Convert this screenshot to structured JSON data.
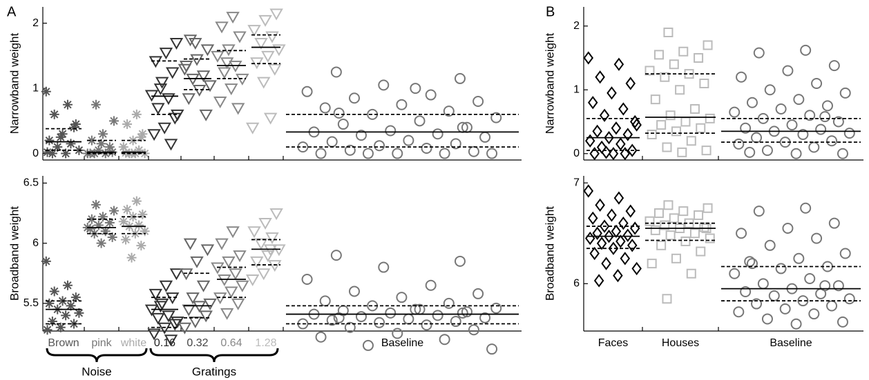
{
  "chart_data": [
    {
      "type": "strip",
      "panel_label": "A",
      "ylabel": "Narrowband weight",
      "ylim": [
        -0.1,
        2.25
      ],
      "yticks": [
        0,
        1,
        2
      ],
      "markers": [
        "asterisk",
        "asterisk",
        "asterisk",
        "triangle",
        "triangle",
        "triangle",
        "triangle",
        "circle"
      ],
      "colors": [
        "#555555",
        "#777777",
        "#aaaaaa",
        "#333333",
        "#666666",
        "#888888",
        "#bbbbbb",
        "#777777"
      ],
      "medians": [
        0.18,
        0.02,
        0.02,
        0.88,
        1.15,
        1.35,
        1.63,
        0.33
      ],
      "q1": [
        0.05,
        0,
        0,
        0.6,
        0.98,
        1.15,
        1.38,
        0.1
      ],
      "q3": [
        0.38,
        0.2,
        0.2,
        1.42,
        1.45,
        1.58,
        1.82,
        0.6
      ],
      "values": [
        [
          0.95,
          0.75,
          0.6,
          0.45,
          0.3,
          0.2,
          0.15,
          0.1,
          0.05,
          0,
          0,
          0.4,
          0.25,
          0.02
        ],
        [
          0.75,
          0.5,
          0.3,
          0.2,
          0.1,
          0.05,
          0,
          0,
          0,
          0.02,
          0.15,
          0
        ],
        [
          0.6,
          0.45,
          0.3,
          0.2,
          0.1,
          0.05,
          0,
          0,
          0,
          0.01,
          0.25,
          0
        ],
        [
          1.7,
          1.55,
          1.42,
          1.25,
          1.1,
          0.9,
          0.85,
          0.7,
          0.55,
          0.4,
          0.3,
          0.15,
          1.0,
          0.6
        ],
        [
          1.75,
          1.6,
          1.45,
          1.35,
          1.2,
          1.15,
          1.05,
          0.98,
          0.85,
          0.6,
          1.7,
          1.3
        ],
        [
          2.1,
          1.95,
          1.8,
          1.6,
          1.5,
          1.35,
          1.25,
          1.15,
          1.0,
          0.8,
          0.7,
          1.4
        ],
        [
          2.15,
          2.05,
          1.9,
          1.8,
          1.7,
          1.6,
          1.5,
          1.4,
          1.3,
          1.1,
          0.4,
          0.55
        ],
        [
          1.25,
          1.15,
          1.05,
          0.95,
          0.9,
          0.85,
          0.8,
          0.75,
          0.7,
          0.65,
          0.6,
          0.55,
          0.5,
          0.45,
          0.4,
          0.35,
          0.33,
          0.3,
          0.28,
          0.25,
          0.2,
          0.18,
          0.15,
          0.12,
          0.1,
          0.08,
          0.05,
          0.03,
          0,
          0,
          0,
          0,
          0,
          1.0,
          0.62,
          0.4
        ]
      ]
    },
    {
      "type": "strip",
      "ylabel": "Broadband weight",
      "ylim": [
        5.27,
        6.56
      ],
      "yticks": [
        5.5,
        6,
        6.5
      ],
      "categories": [
        "Brown",
        "pink",
        "white",
        "0.16",
        "0.32",
        "0.64",
        "1.28",
        "Baseline"
      ],
      "category_colors": [
        "#555555",
        "#777777",
        "#aaaaaa",
        "#222222",
        "#444444",
        "#888888",
        "#bbbbbb",
        "#000000"
      ],
      "annotations": [
        "Noise",
        "Gratings"
      ],
      "markers": [
        "asterisk",
        "asterisk",
        "asterisk",
        "triangle",
        "triangle",
        "triangle",
        "triangle",
        "circle"
      ],
      "colors": [
        "#555555",
        "#777777",
        "#aaaaaa",
        "#333333",
        "#666666",
        "#888888",
        "#bbbbbb",
        "#777777"
      ],
      "medians": [
        5.45,
        6.13,
        6.14,
        5.45,
        5.48,
        5.7,
        5.95,
        5.41
      ],
      "q1": [
        5.33,
        6.08,
        6.08,
        5.3,
        5.38,
        5.55,
        5.82,
        5.33
      ],
      "q3": [
        5.52,
        6.2,
        6.22,
        5.55,
        5.75,
        5.8,
        6.03,
        5.48
      ],
      "values": [
        [
          5.85,
          5.65,
          5.6,
          5.55,
          5.52,
          5.5,
          5.48,
          5.45,
          5.42,
          5.4,
          5.35,
          5.33,
          5.3,
          5.28
        ],
        [
          6.32,
          6.27,
          6.22,
          6.2,
          6.17,
          6.15,
          6.13,
          6.1,
          6.08,
          6.05,
          6.0,
          6.12
        ],
        [
          6.35,
          6.28,
          6.24,
          6.22,
          6.18,
          6.15,
          6.14,
          6.1,
          6.08,
          6.03,
          5.98,
          5.88
        ],
        [
          5.75,
          5.65,
          5.58,
          5.55,
          5.5,
          5.45,
          5.4,
          5.38,
          5.33,
          5.3,
          5.25,
          5.2,
          5.48,
          5.35
        ],
        [
          6.0,
          5.95,
          5.85,
          5.75,
          5.65,
          5.55,
          5.5,
          5.48,
          5.45,
          5.4,
          5.35,
          5.3
        ],
        [
          6.1,
          6.0,
          5.9,
          5.85,
          5.8,
          5.75,
          5.7,
          5.65,
          5.6,
          5.55,
          5.5,
          5.42
        ],
        [
          6.25,
          6.17,
          6.1,
          6.05,
          6.0,
          5.95,
          5.9,
          5.85,
          5.82,
          5.75,
          5.7,
          5.95
        ],
        [
          5.9,
          5.85,
          5.8,
          5.7,
          5.65,
          5.6,
          5.58,
          5.55,
          5.52,
          5.5,
          5.48,
          5.46,
          5.45,
          5.44,
          5.43,
          5.42,
          5.41,
          5.4,
          5.39,
          5.38,
          5.37,
          5.36,
          5.35,
          5.34,
          5.33,
          5.32,
          5.3,
          5.28,
          5.25,
          5.22,
          5.2,
          5.15,
          5.12,
          5.45,
          5.38,
          5.42
        ]
      ]
    },
    {
      "type": "strip",
      "panel_label": "B",
      "ylabel": "Narrowband weight",
      "ylim": [
        -0.1,
        2.3
      ],
      "yticks": [
        0,
        1,
        2
      ],
      "markers": [
        "diamond",
        "square",
        "circle"
      ],
      "colors": [
        "#000000",
        "#bbbbbb",
        "#777777"
      ],
      "medians": [
        0.25,
        0.57,
        0.35
      ],
      "q1": [
        0.05,
        0.32,
        0.18
      ],
      "q3": [
        0.55,
        1.25,
        0.55
      ],
      "values": [
        [
          1.5,
          1.4,
          1.2,
          1.1,
          0.95,
          0.8,
          0.7,
          0.6,
          0.5,
          0.4,
          0.35,
          0.3,
          0.25,
          0.2,
          0.15,
          0.1,
          0.05,
          0,
          0,
          0,
          0.02,
          0.45
        ],
        [
          1.9,
          1.7,
          1.6,
          1.55,
          1.5,
          1.4,
          1.3,
          1.25,
          1.2,
          1.1,
          1.0,
          0.85,
          0.7,
          0.6,
          0.55,
          0.5,
          0.45,
          0.4,
          0.35,
          0.3,
          0.2,
          0.1,
          0.05,
          0.02
        ],
        [
          1.62,
          1.58,
          1.38,
          1.3,
          1.2,
          1.1,
          1.0,
          0.95,
          0.85,
          0.8,
          0.75,
          0.7,
          0.65,
          0.6,
          0.55,
          0.5,
          0.45,
          0.4,
          0.38,
          0.35,
          0.32,
          0.3,
          0.25,
          0.2,
          0.18,
          0.15,
          0.1,
          0.05,
          0,
          0,
          0.02,
          0.58
        ]
      ]
    },
    {
      "type": "strip",
      "ylabel": "Broadband weight",
      "ylim": [
        5.53,
        7.07
      ],
      "yticks": [
        6,
        7
      ],
      "categories": [
        "Faces",
        "Houses",
        "Baseline"
      ],
      "category_colors": [
        "#000000",
        "#000000",
        "#000000"
      ],
      "markers": [
        "diamond",
        "square",
        "circle"
      ],
      "colors": [
        "#000000",
        "#bbbbbb",
        "#777777"
      ],
      "medians": [
        6.47,
        6.55,
        5.95
      ],
      "q1": [
        6.35,
        6.43,
        5.83
      ],
      "q3": [
        6.57,
        6.6,
        6.17
      ],
      "values": [
        [
          6.92,
          6.85,
          6.78,
          6.72,
          6.68,
          6.65,
          6.6,
          6.57,
          6.55,
          6.52,
          6.5,
          6.48,
          6.47,
          6.45,
          6.42,
          6.4,
          6.38,
          6.35,
          6.3,
          6.25,
          6.2,
          6.15,
          6.08,
          6.03
        ],
        [
          6.78,
          6.75,
          6.72,
          6.7,
          6.68,
          6.65,
          6.62,
          6.6,
          6.58,
          6.56,
          6.55,
          6.53,
          6.5,
          6.48,
          6.45,
          6.42,
          6.38,
          6.32,
          6.25,
          6.2,
          6.1,
          5.85,
          6.55
        ],
        [
          6.75,
          6.72,
          6.6,
          6.55,
          6.5,
          6.45,
          6.38,
          6.3,
          6.25,
          6.2,
          6.17,
          6.15,
          6.1,
          6.05,
          6.0,
          5.98,
          5.95,
          5.92,
          5.9,
          5.88,
          5.85,
          5.83,
          5.8,
          5.78,
          5.75,
          5.72,
          5.7,
          5.65,
          5.62,
          5.6,
          6.22,
          5.98
        ]
      ]
    }
  ]
}
